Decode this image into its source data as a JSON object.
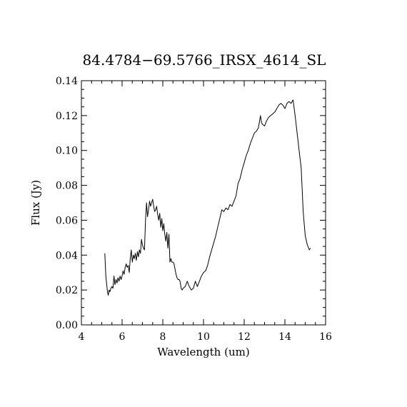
{
  "chart_data": {
    "type": "line",
    "title": "84.4784−69.5766_IRSX_4614_SL",
    "xlabel": "Wavelength (um)",
    "ylabel": "Flux (Jy)",
    "xlim": [
      4,
      16
    ],
    "ylim": [
      0.0,
      0.14
    ],
    "x_ticks": [
      4,
      6,
      8,
      10,
      12,
      14,
      16
    ],
    "x_tick_labels": [
      "4",
      "6",
      "8",
      "10",
      "12",
      "14",
      "16"
    ],
    "y_ticks": [
      0.0,
      0.02,
      0.04,
      0.06,
      0.08,
      0.1,
      0.12,
      0.14
    ],
    "y_tick_labels": [
      "0.00",
      "0.02",
      "0.04",
      "0.06",
      "0.08",
      "0.10",
      "0.12",
      "0.14"
    ],
    "grid": false,
    "legend": "none",
    "line_color": "#000000",
    "series": [
      {
        "x": [
          5.15,
          5.2,
          5.28,
          5.32,
          5.36,
          5.4,
          5.45,
          5.5,
          5.55,
          5.6,
          5.65,
          5.7,
          5.75,
          5.8,
          5.85,
          5.9,
          5.95,
          6.0,
          6.05,
          6.1,
          6.15,
          6.2,
          6.25,
          6.3,
          6.35,
          6.4,
          6.45,
          6.5,
          6.55,
          6.6,
          6.65,
          6.7,
          6.75,
          6.8,
          6.85,
          6.9,
          6.95,
          7.0,
          7.05,
          7.1,
          7.15,
          7.2,
          7.25,
          7.3,
          7.35,
          7.4,
          7.45,
          7.5,
          7.55,
          7.6,
          7.65,
          7.7,
          7.75,
          7.8,
          7.85,
          7.9,
          7.95,
          8.0,
          8.05,
          8.1,
          8.15,
          8.2,
          8.25,
          8.3,
          8.35,
          8.4,
          8.45,
          8.5,
          8.55,
          8.6,
          8.65,
          8.7,
          8.75,
          8.8,
          8.85,
          8.9,
          8.95,
          9.0,
          9.1,
          9.2,
          9.3,
          9.4,
          9.5,
          9.6,
          9.7,
          9.8,
          9.9,
          10.0,
          10.1,
          10.2,
          10.3,
          10.4,
          10.5,
          10.6,
          10.7,
          10.8,
          10.9,
          11.0,
          11.1,
          11.2,
          11.3,
          11.4,
          11.5,
          11.6,
          11.7,
          11.8,
          11.9,
          12.0,
          12.1,
          12.2,
          12.3,
          12.4,
          12.5,
          12.6,
          12.7,
          12.8,
          12.85,
          12.9,
          13.0,
          13.1,
          13.2,
          13.3,
          13.4,
          13.5,
          13.6,
          13.7,
          13.8,
          13.9,
          14.0,
          14.1,
          14.2,
          14.3,
          14.4,
          14.5,
          14.6,
          14.7,
          14.8,
          14.9,
          15.0,
          15.1,
          15.2,
          15.25
        ],
        "y": [
          0.041,
          0.028,
          0.019,
          0.017,
          0.02,
          0.019,
          0.021,
          0.022,
          0.021,
          0.028,
          0.023,
          0.026,
          0.024,
          0.027,
          0.025,
          0.028,
          0.026,
          0.028,
          0.031,
          0.029,
          0.033,
          0.035,
          0.033,
          0.034,
          0.03,
          0.038,
          0.043,
          0.036,
          0.04,
          0.038,
          0.041,
          0.037,
          0.042,
          0.039,
          0.043,
          0.041,
          0.049,
          0.046,
          0.044,
          0.043,
          0.06,
          0.07,
          0.062,
          0.066,
          0.071,
          0.068,
          0.07,
          0.072,
          0.068,
          0.065,
          0.066,
          0.068,
          0.063,
          0.06,
          0.064,
          0.056,
          0.061,
          0.054,
          0.058,
          0.052,
          0.048,
          0.053,
          0.044,
          0.052,
          0.036,
          0.038,
          0.036,
          0.036,
          0.035,
          0.032,
          0.029,
          0.027,
          0.026,
          0.026,
          0.025,
          0.021,
          0.02,
          0.021,
          0.022,
          0.025,
          0.022,
          0.02,
          0.021,
          0.025,
          0.022,
          0.025,
          0.028,
          0.03,
          0.031,
          0.034,
          0.039,
          0.043,
          0.047,
          0.051,
          0.056,
          0.061,
          0.066,
          0.065,
          0.067,
          0.066,
          0.069,
          0.068,
          0.071,
          0.074,
          0.081,
          0.084,
          0.089,
          0.093,
          0.097,
          0.1,
          0.104,
          0.107,
          0.11,
          0.111,
          0.113,
          0.12,
          0.116,
          0.115,
          0.114,
          0.117,
          0.119,
          0.12,
          0.121,
          0.122,
          0.124,
          0.126,
          0.127,
          0.126,
          0.124,
          0.127,
          0.128,
          0.127,
          0.129,
          0.12,
          0.11,
          0.1,
          0.09,
          0.065,
          0.051,
          0.046,
          0.043,
          0.044
        ]
      }
    ]
  }
}
